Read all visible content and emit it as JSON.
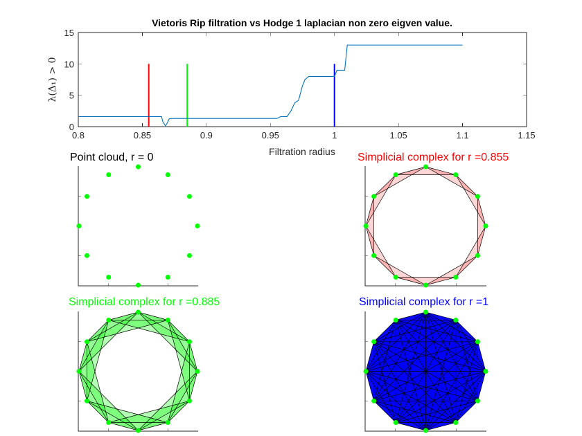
{
  "chart_data": [
    {
      "type": "line",
      "title": "Vietoris Rip filtration vs Hodge 1 laplacian non zero eigven value.",
      "xlabel": "Filtration radius",
      "ylabel": "λ(Δ₁) > 0",
      "xlim": [
        0.8,
        1.15
      ],
      "ylim": [
        0,
        15
      ],
      "xticks": [
        "0.8",
        "0.85",
        "0.9",
        "0.95",
        "1",
        "1.05",
        "1.1",
        "1.15"
      ],
      "yticks": [
        "0",
        "5",
        "10",
        "15"
      ],
      "grid": false,
      "series": [
        {
          "color": "#0072BD",
          "x": [
            0.8,
            0.865,
            0.866,
            0.868,
            0.869,
            0.871,
            0.874,
            0.955,
            0.958,
            0.963,
            0.966,
            0.969,
            0.972,
            0.975,
            0.977,
            0.98,
            0.998,
            1.0,
            1.002,
            1.008,
            1.01,
            1.1
          ],
          "y": [
            1.6,
            1.6,
            0.8,
            0.15,
            0.4,
            1.25,
            1.3,
            1.3,
            1.6,
            1.6,
            2.5,
            3.8,
            4.2,
            6.5,
            7.5,
            8.0,
            8.0,
            8.0,
            9.0,
            9.0,
            13.0,
            13.0
          ]
        }
      ],
      "vlines": [
        {
          "x": 0.855,
          "y0": 0,
          "y1": 10,
          "color": "#FF0000"
        },
        {
          "x": 0.885,
          "y0": 0,
          "y1": 10,
          "color": "#00FF00"
        },
        {
          "x": 1.0,
          "y0": 0,
          "y1": 10,
          "color": "#0000FF"
        }
      ]
    },
    {
      "type": "scatter",
      "title": "Point cloud, r = 0",
      "title_color": "#000000",
      "point_color": "#00FF00",
      "n_points": 12,
      "edge_steps": 0,
      "triangles": false
    },
    {
      "type": "scatter",
      "title": "Simplicial complex for r =0.855",
      "title_color": "#FF0000",
      "fill_color": "#FF0000",
      "point_color": "#00FF00",
      "n_points": 12,
      "edge_steps": 2,
      "triangles": true
    },
    {
      "type": "scatter",
      "title": "Simplicial complex for r =0.885",
      "title_color": "#00FF00",
      "fill_color": "#00FF00",
      "point_color": "#00FF00",
      "n_points": 12,
      "edge_steps": 3,
      "triangles": true
    },
    {
      "type": "scatter",
      "title": "Simplicial complex for r =1",
      "title_color": "#0000FF",
      "fill_color": "#0000FF",
      "point_color": "#00FF00",
      "n_points": 12,
      "edge_steps": 6,
      "triangles": true
    }
  ]
}
